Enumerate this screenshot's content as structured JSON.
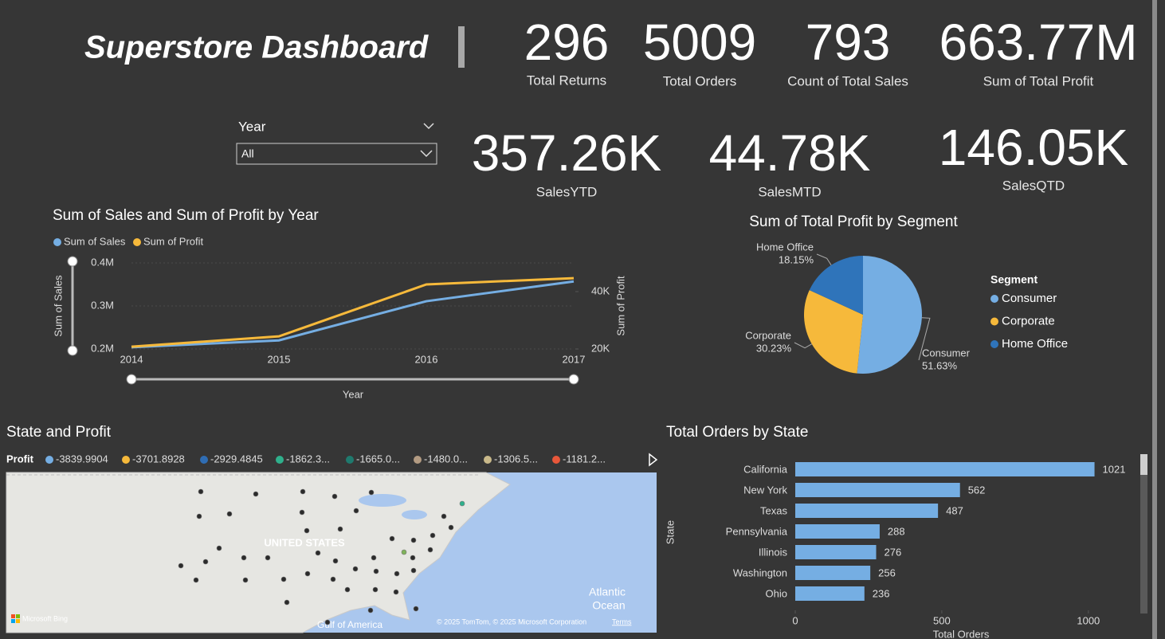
{
  "header": {
    "title": "Superstore Dashboard"
  },
  "kpis": [
    {
      "value": 296,
      "label": "Total Returns"
    },
    {
      "value": 5009,
      "label": "Total Orders"
    },
    {
      "value": 793,
      "label": "Count of Total Sales"
    },
    {
      "value": "663.77M",
      "label": "Sum of Total Profit"
    },
    {
      "value": "357.26K",
      "label": "SalesYTD"
    },
    {
      "value": "44.78K",
      "label": "SalesMTD"
    },
    {
      "value": "146.05K",
      "label": "SalesQTD"
    }
  ],
  "slicer": {
    "label": "Year",
    "selected": "All"
  },
  "chart_data": [
    {
      "type": "line",
      "title": "Sum of Sales and Sum of Profit by Year",
      "categories": [
        "2014",
        "2015",
        "2016",
        "2017"
      ],
      "x_label": "Year",
      "y_label": "Sum of Sales",
      "y2_label": "Sum of Profit",
      "series": [
        {
          "name": "Sum of Sales",
          "color": "#75aee3",
          "values": [
            204000,
            220000,
            311000,
            357000
          ]
        },
        {
          "name": "Sum of Profit",
          "color": "#f6b93b",
          "axis": "y2",
          "values": [
            20800,
            24400,
            42500,
            44700
          ]
        }
      ],
      "ylim": [
        200000,
        400000
      ],
      "yticks": [
        {
          "value": 200000,
          "label": "0.2M"
        },
        {
          "value": 300000,
          "label": "0.3M"
        },
        {
          "value": 400000,
          "label": "0.4M"
        }
      ],
      "y2lim": [
        20000,
        50000
      ],
      "y2ticks": [
        {
          "value": 20000,
          "label": "20K"
        },
        {
          "value": 40000,
          "label": "40K"
        }
      ],
      "legend": "top-left"
    },
    {
      "type": "pie",
      "title": "Sum of Total Profit by Segment",
      "legend_title": "Segment",
      "categories": [
        "Consumer",
        "Corporate",
        "Home Office"
      ],
      "values": [
        51.63,
        30.23,
        18.15
      ],
      "value_labels": [
        "51.63%",
        "30.23%",
        "18.15%"
      ],
      "colors": [
        "#75aee3",
        "#f6b93b",
        "#2f74ba"
      ],
      "legend": "right"
    },
    {
      "type": "bar",
      "orientation": "horizontal",
      "title": "Total Orders by State",
      "categories": [
        "California",
        "New York",
        "Texas",
        "Pennsylvania",
        "Illinois",
        "Washington",
        "Ohio"
      ],
      "values": [
        1021,
        562,
        487,
        288,
        276,
        256,
        236
      ],
      "color": "#75aee3",
      "xlim": [
        0,
        1150
      ],
      "xticks": [
        0,
        500,
        1000
      ],
      "x_label": "Total Orders",
      "y_label": "State"
    }
  ],
  "map": {
    "title": "State and Profit",
    "legend_title": "Profit",
    "legend": [
      {
        "label": "-3839.9904",
        "color": "#75aee3"
      },
      {
        "label": "-3701.8928",
        "color": "#f6b93b"
      },
      {
        "label": "-2929.4845",
        "color": "#2f6db4"
      },
      {
        "label": "-1862.3...",
        "color": "#2fb08c"
      },
      {
        "label": "-1665.0...",
        "color": "#1f7a6e"
      },
      {
        "label": "-1480.0...",
        "color": "#b39b82"
      },
      {
        "label": "-1306.5...",
        "color": "#c9b98a"
      },
      {
        "label": "-1181.2...",
        "color": "#e8573a"
      }
    ],
    "country_label": "UNITED STATES",
    "ocean_lines": [
      "Atlantic",
      "Ocean"
    ],
    "gulf_label": "Gulf of America",
    "attribution": "© 2025 TomTom, © 2025 Microsoft Corporation",
    "terms": "Terms",
    "provider": "Microsoft Bing"
  }
}
